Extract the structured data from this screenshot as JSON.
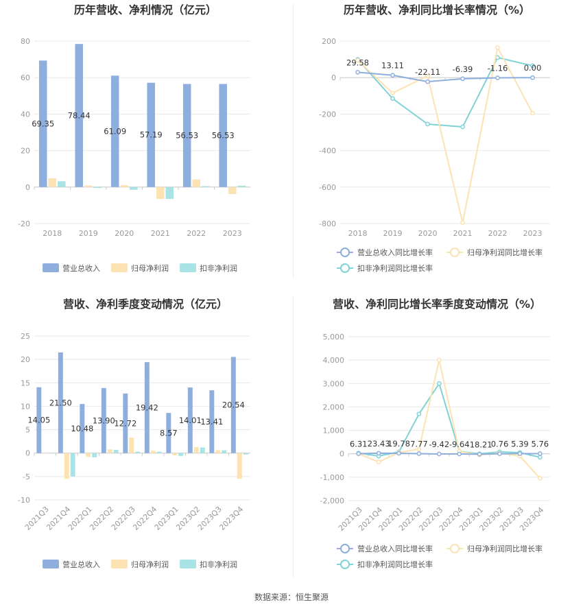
{
  "colors": {
    "revenue": "#8eaedd",
    "net_profit": "#fde2b2",
    "deducted_profit": "#a9e3e6",
    "revenue_line": "#8eaedd",
    "net_profit_line": "#fde2b2",
    "deducted_line": "#7fd3d6",
    "grid": "#e8e8e8",
    "axis": "#cccccc"
  },
  "legend_labels": {
    "bar": [
      "营业总收入",
      "归母净利润",
      "扣非净利润"
    ],
    "line": [
      "营业总收入同比增长率",
      "归母净利润同比增长率",
      "扣非净利润同比增长率"
    ]
  },
  "source": "数据来源：恒生聚源",
  "chart_data": [
    {
      "id": "annual-bar",
      "type": "bar",
      "title": "历年营收、净利情况（亿元）",
      "categories": [
        "2018",
        "2019",
        "2020",
        "2021",
        "2022",
        "2023"
      ],
      "yticks": [
        "80",
        "60",
        "40",
        "20",
        "0",
        "-20"
      ],
      "ylim": [
        -20,
        80
      ],
      "series": [
        {
          "name": "营业总收入",
          "values": [
            69.35,
            78.44,
            61.09,
            57.19,
            56.53,
            56.53
          ]
        },
        {
          "name": "归母净利润",
          "values": [
            4.8,
            0.9,
            1.0,
            -6.5,
            4.2,
            -3.8
          ]
        },
        {
          "name": "扣非净利润",
          "values": [
            3.2,
            -0.5,
            -1.5,
            -6.5,
            0.5,
            0.8
          ]
        }
      ],
      "data_labels": [
        "69.35",
        "78.44",
        "61.09",
        "57.19",
        "56.53",
        "56.53"
      ],
      "legend": "bottom"
    },
    {
      "id": "annual-line",
      "type": "line",
      "title": "历年营收、净利同比增长率情况（%）",
      "categories": [
        "2018",
        "2019",
        "2020",
        "2021",
        "2022",
        "2023"
      ],
      "yticks": [
        "200",
        "0",
        "-200",
        "-400",
        "-600",
        "-800"
      ],
      "ylim": [
        -800,
        200
      ],
      "series": [
        {
          "name": "营业总收入同比增长率",
          "values": [
            29.58,
            13.11,
            -22.11,
            -6.39,
            -1.16,
            0.0
          ]
        },
        {
          "name": "归母净利润同比增长率",
          "values": [
            95,
            -85,
            10,
            -795,
            165,
            -195
          ]
        },
        {
          "name": "扣非净利润同比增长率",
          "values": [
            100,
            -115,
            -255,
            -270,
            110,
            65
          ]
        }
      ],
      "data_labels": [
        "29.58",
        "13.11",
        "-22.11",
        "-6.39",
        "-1.16",
        "0.00"
      ],
      "legend": "bottom"
    },
    {
      "id": "quarterly-bar",
      "type": "bar",
      "title": "营收、净利季度变动情况（亿元）",
      "categories": [
        "2021Q3",
        "2021Q4",
        "2022Q1",
        "2022Q2",
        "2022Q3",
        "2022Q4",
        "2023Q1",
        "2023Q2",
        "2023Q3",
        "2023Q4"
      ],
      "yticks": [
        "25",
        "20",
        "15",
        "10",
        "5",
        "0",
        "-5",
        "-10"
      ],
      "ylim": [
        -10,
        25
      ],
      "series": [
        {
          "name": "营业总收入",
          "values": [
            14.05,
            21.5,
            10.48,
            13.9,
            12.72,
            19.42,
            8.57,
            14.01,
            13.41,
            20.54
          ]
        },
        {
          "name": "归母净利润",
          "values": [
            0,
            -5.5,
            -0.8,
            0.8,
            3.3,
            0.5,
            -0.5,
            1.3,
            0.6,
            -5.5
          ]
        },
        {
          "name": "扣非净利润",
          "values": [
            0,
            -5.0,
            -0.9,
            0.7,
            0.3,
            0.3,
            -0.6,
            1.2,
            0.6,
            -0.3
          ]
        }
      ],
      "data_labels": [
        "14.05",
        "21.50",
        "10.48",
        "13.90",
        "12.72",
        "19.42",
        "8.57",
        "14.01",
        "13.41",
        "20.54"
      ],
      "legend": "bottom"
    },
    {
      "id": "quarterly-line",
      "type": "line",
      "title": "营收、净利同比增长率季度变动情况（%）",
      "categories": [
        "2021Q3",
        "2021Q4",
        "2022Q1",
        "2022Q2",
        "2022Q3",
        "2022Q4",
        "2023Q1",
        "2023Q2",
        "2023Q3",
        "2023Q4"
      ],
      "yticks": [
        "5,000",
        "4,000",
        "3,000",
        "2,000",
        "1,000",
        "0",
        "-1,000",
        "-2,000"
      ],
      "ylim": [
        -2000,
        5000
      ],
      "series": [
        {
          "name": "营业总收入同比增长率",
          "values": [
            6.31,
            23.43,
            19.78,
            7.77,
            -9.42,
            -9.64,
            -18.21,
            0.76,
            5.39,
            5.76
          ]
        },
        {
          "name": "归母净利润同比增长率",
          "values": [
            0,
            -350,
            50,
            200,
            4000,
            100,
            -50,
            30,
            -100,
            -1050
          ]
        },
        {
          "name": "扣非净利润同比增长率",
          "values": [
            30,
            -100,
            80,
            1700,
            3000,
            100,
            0,
            80,
            50,
            -150
          ]
        }
      ],
      "data_labels": [
        "6.31",
        "23.43",
        "19.78",
        "7.77",
        "-9.42",
        "-9.64",
        "-18.21",
        "0.76",
        "5.39",
        "5.76"
      ],
      "legend": "bottom"
    }
  ]
}
